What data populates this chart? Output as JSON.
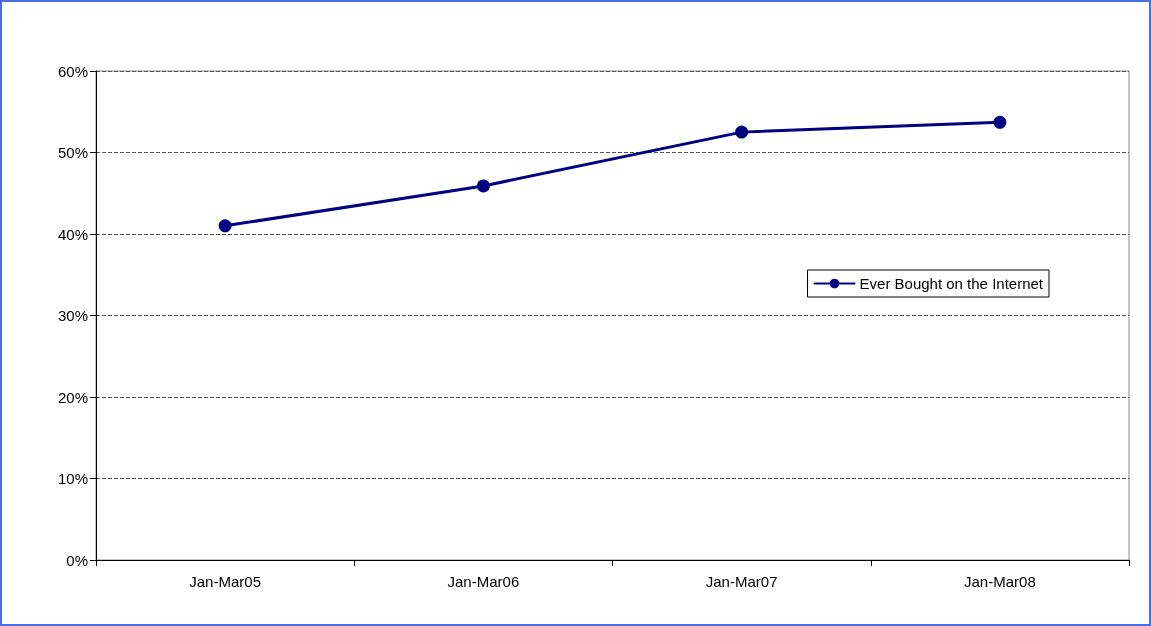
{
  "chart_data": {
    "type": "line",
    "categories": [
      "Jan-Mar05",
      "Jan-Mar06",
      "Jan-Mar07",
      "Jan-Mar08"
    ],
    "series": [
      {
        "name": "Ever Bought on the Internet",
        "color": "#000080",
        "values": [
          41,
          45.9,
          52.5,
          53.7
        ]
      }
    ],
    "ylim": [
      0,
      60
    ],
    "yticks": [
      {
        "value": 0,
        "label": "0%"
      },
      {
        "value": 10,
        "label": "10%"
      },
      {
        "value": 20,
        "label": "20%"
      },
      {
        "value": 30,
        "label": "30%"
      },
      {
        "value": 40,
        "label": "40%"
      },
      {
        "value": 50,
        "label": "50%"
      },
      {
        "value": 60,
        "label": "60%"
      }
    ],
    "grid": "y",
    "legend": "right",
    "marker": "circle",
    "line_style": "solid"
  }
}
